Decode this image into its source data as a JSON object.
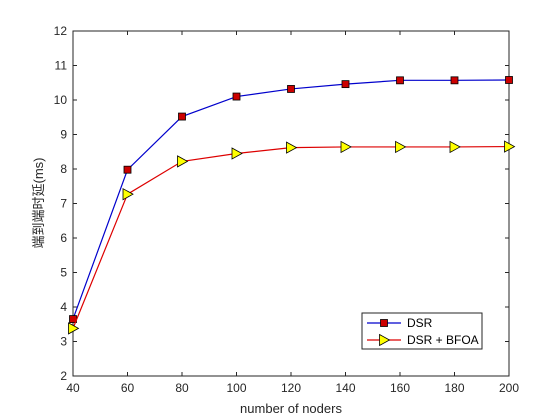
{
  "chart_data": {
    "type": "line",
    "title": "",
    "xlabel": "number of noders",
    "ylabel": "端到端时延(ms)",
    "x": [
      40,
      60,
      80,
      100,
      120,
      140,
      160,
      180,
      200
    ],
    "xlim": [
      40,
      200
    ],
    "ylim": [
      2,
      12
    ],
    "xticks": [
      40,
      60,
      80,
      100,
      120,
      140,
      160,
      180,
      200
    ],
    "yticks": [
      2,
      3,
      4,
      5,
      6,
      7,
      8,
      9,
      10,
      11,
      12
    ],
    "grid": false,
    "legend_position": "bottom-right",
    "series": [
      {
        "name": "DSR",
        "values": [
          3.65,
          7.98,
          9.52,
          10.1,
          10.32,
          10.46,
          10.57,
          10.57,
          10.58
        ],
        "line_color": "#0000cc",
        "marker": "square",
        "marker_fill": "#cc0000"
      },
      {
        "name": "DSR + BFOA",
        "values": [
          3.38,
          7.27,
          8.22,
          8.45,
          8.62,
          8.64,
          8.64,
          8.64,
          8.65
        ],
        "line_color": "#dd0000",
        "marker": "triangle-right",
        "marker_fill": "#ffff00"
      }
    ]
  }
}
